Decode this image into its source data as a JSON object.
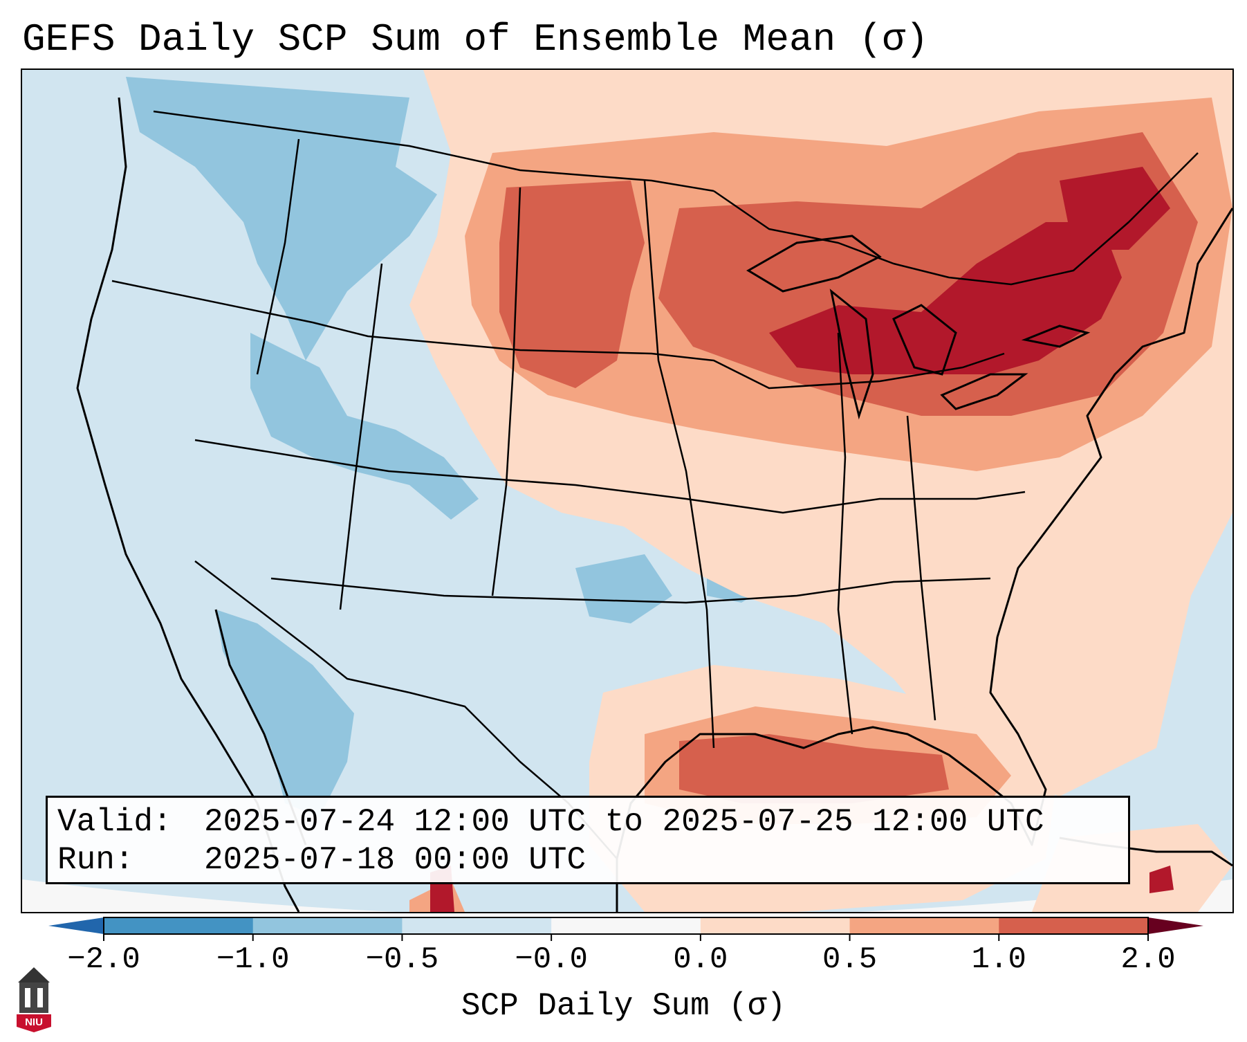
{
  "title": "GEFS Daily SCP Sum of Ensemble Mean (σ)",
  "info": {
    "valid_key": "Valid:",
    "valid_value": "2025-07-24 12:00 UTC to 2025-07-25 12:00 UTC",
    "run_key": "Run:",
    "run_value": "2025-07-18 00:00 UTC"
  },
  "colorbar": {
    "label": "SCP Daily Sum (σ)",
    "ticks": [
      "−2.0",
      "−1.0",
      "−0.5",
      "−0.0",
      "0.0",
      "0.5",
      "1.0",
      "2.0"
    ],
    "colors": [
      "#4393c3",
      "#92c5de",
      "#d1e5f0",
      "#f7f7f7",
      "#fddbc7",
      "#f4a582",
      "#d6604d",
      "#b2182b"
    ],
    "under_color": "#2166ac",
    "over_color": "#67001f"
  },
  "logo": {
    "text": "NIU",
    "icon": "university-tower-icon",
    "color": "#c8102e"
  },
  "map": {
    "region": "Contiguous United States",
    "background_field": "#d1e5f0",
    "neutral_field": "#f7f7f7",
    "anomaly_regions": [
      {
        "name": "great-lakes-northeast-maximum",
        "level": 2.0,
        "color": "#b2182b"
      },
      {
        "name": "upper-midwest-high",
        "level": 1.0,
        "color": "#d6604d"
      },
      {
        "name": "dakotas-high",
        "level": 1.0,
        "color": "#d6604d"
      },
      {
        "name": "gulf-of-mexico-high",
        "level": 1.0,
        "color": "#d6604d"
      },
      {
        "name": "plains-moderate",
        "level": 0.5,
        "color": "#f4a582"
      },
      {
        "name": "northern-rockies-low",
        "level": -1.0,
        "color": "#92c5de"
      },
      {
        "name": "four-corners-low",
        "level": -1.0,
        "color": "#92c5de"
      },
      {
        "name": "appalachian-low",
        "level": -1.0,
        "color": "#92c5de"
      }
    ]
  }
}
